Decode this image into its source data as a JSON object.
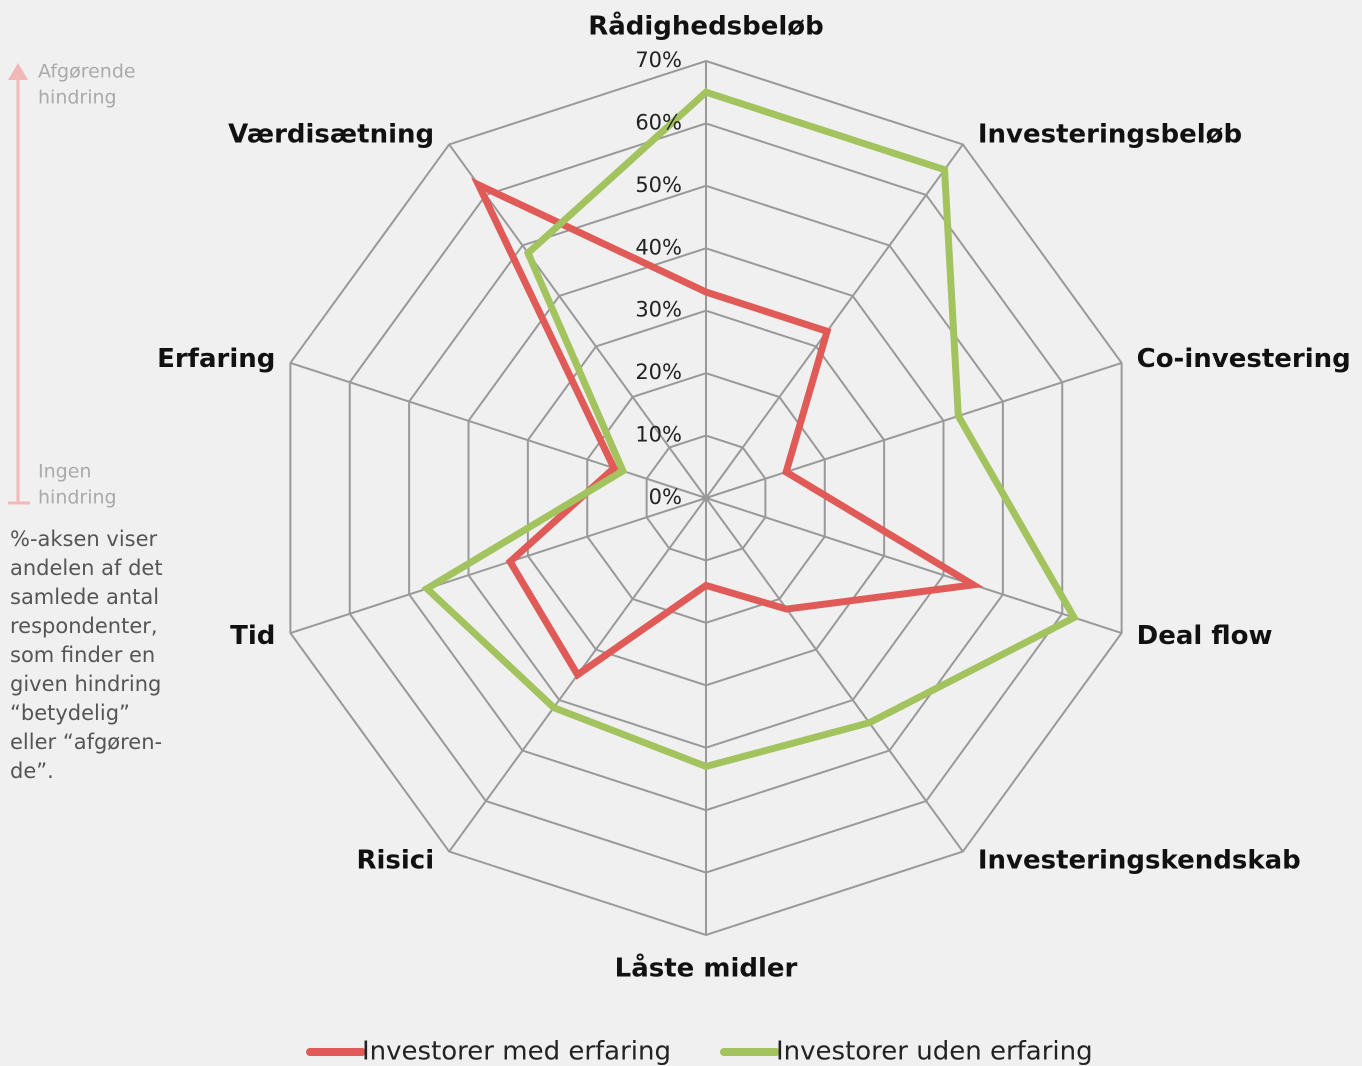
{
  "chart_data": {
    "type": "radar",
    "categories": [
      "Rådighedsbeløb",
      "Investeringsbeløb",
      "Co-investering",
      "Deal flow",
      "Investeringskendskab",
      "Låste midler",
      "Risici",
      "Tid",
      "Erfaring",
      "Værdisætning"
    ],
    "series": [
      {
        "name": "Investorer med erfaring",
        "color": "#e05a57",
        "values": [
          33,
          33,
          13.5,
          45,
          22,
          14,
          35,
          33,
          15.5,
          62
        ]
      },
      {
        "name": "Investorer uden erfaring",
        "color": "#a3c35f",
        "values": [
          65,
          65,
          42.5,
          62,
          44.5,
          43,
          41.5,
          47,
          14,
          48.5
        ]
      }
    ],
    "ylim": [
      0,
      70
    ],
    "yticks": [
      {
        "value": 0,
        "label": "0%"
      },
      {
        "value": 10,
        "label": "10%"
      },
      {
        "value": 20,
        "label": "20%"
      },
      {
        "value": 30,
        "label": "30%"
      },
      {
        "value": 40,
        "label": "40%"
      },
      {
        "value": 50,
        "label": "50%"
      },
      {
        "value": 60,
        "label": "60%"
      },
      {
        "value": 70,
        "label": "70%"
      }
    ],
    "grid": true,
    "legend": "bottom",
    "annotations": {
      "top_label_lines": [
        "Afgørende",
        "hindring"
      ],
      "bottom_label_lines": [
        "Ingen",
        "hindring"
      ],
      "note_lines": [
        "%-aksen viser",
        "andelen af det",
        "samlede antal",
        "respondenter,",
        "som finder en",
        "given hindring",
        "“betydelig”",
        "eller “afgøren-",
        "de”."
      ]
    }
  }
}
